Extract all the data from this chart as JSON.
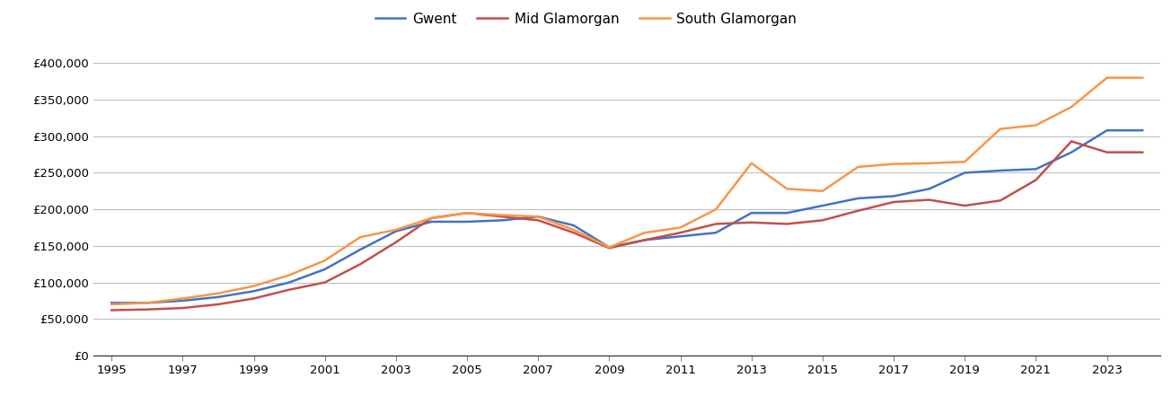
{
  "years": [
    1995,
    1996,
    1997,
    1998,
    1999,
    2000,
    2001,
    2002,
    2003,
    2004,
    2005,
    2006,
    2007,
    2008,
    2009,
    2010,
    2011,
    2012,
    2013,
    2014,
    2015,
    2016,
    2017,
    2018,
    2019,
    2020,
    2021,
    2022,
    2023,
    2024
  ],
  "gwent": [
    72000,
    72000,
    75000,
    80000,
    88000,
    100000,
    118000,
    145000,
    170000,
    183000,
    183000,
    185000,
    190000,
    178000,
    148000,
    158000,
    163000,
    168000,
    195000,
    195000,
    205000,
    215000,
    218000,
    228000,
    250000,
    253000,
    255000,
    278000,
    308000,
    308000
  ],
  "mid_glamorgan": [
    62000,
    63000,
    65000,
    70000,
    78000,
    90000,
    100000,
    125000,
    155000,
    188000,
    195000,
    190000,
    185000,
    168000,
    147000,
    158000,
    168000,
    180000,
    182000,
    180000,
    185000,
    198000,
    210000,
    213000,
    205000,
    212000,
    240000,
    293000,
    278000,
    278000
  ],
  "south_glamorgan": [
    70000,
    72000,
    78000,
    85000,
    95000,
    110000,
    130000,
    162000,
    172000,
    188000,
    195000,
    192000,
    190000,
    172000,
    148000,
    168000,
    175000,
    200000,
    263000,
    228000,
    225000,
    258000,
    262000,
    263000,
    265000,
    310000,
    315000,
    340000,
    380000,
    380000
  ],
  "series_colors": [
    "#4472C4",
    "#C0504D",
    "#F79646"
  ],
  "series_labels": [
    "Gwent",
    "Mid Glamorgan",
    "South Glamorgan"
  ],
  "ylim": [
    0,
    420000
  ],
  "yticks": [
    0,
    50000,
    100000,
    150000,
    200000,
    250000,
    300000,
    350000,
    400000
  ],
  "ytick_labels": [
    "£0",
    "£50,000",
    "£100,000",
    "£150,000",
    "£200,000",
    "£250,000",
    "£300,000",
    "£350,000",
    "£400,000"
  ],
  "xtick_years": [
    1995,
    1997,
    1999,
    2001,
    2003,
    2005,
    2007,
    2009,
    2011,
    2013,
    2015,
    2017,
    2019,
    2021,
    2023
  ],
  "background_color": "#ffffff",
  "grid_color": "#c0c0c0",
  "line_width": 1.8
}
